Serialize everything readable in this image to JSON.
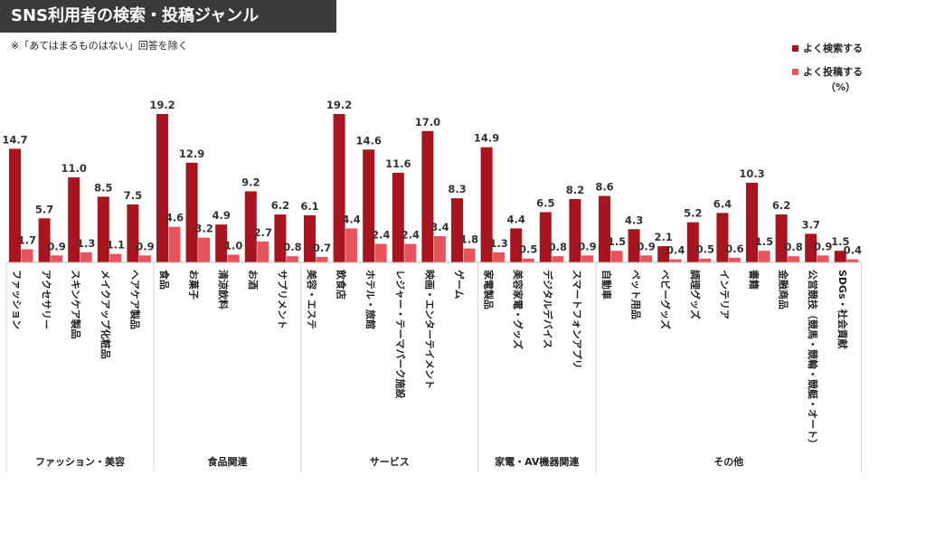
{
  "title": "SNS利用者の検索・投稿ジャンル",
  "note": "※「あてはまるものはない」回答を除く",
  "unit": "（%）",
  "colors": {
    "search": "#a8151f",
    "post": "#e8545c",
    "title_bg": "#3a3a3a"
  },
  "chart_data": {
    "type": "bar",
    "title": "SNS利用者の検索・投稿ジャンル",
    "ylabel": "",
    "ylim": [
      0,
      20
    ],
    "grid": false,
    "legend_position": "top-right",
    "series": [
      {
        "name": "よく検索する"
      },
      {
        "name": "よく投稿する"
      }
    ],
    "groups": [
      {
        "name": "ファッション・美容",
        "categories": [
          {
            "label": "ファッション",
            "values": [
              14.7,
              1.7
            ]
          },
          {
            "label": "アクセサリー",
            "values": [
              5.7,
              0.9
            ]
          },
          {
            "label": "スキンケア製品",
            "values": [
              11.0,
              1.3
            ]
          },
          {
            "label": "メイクアップ化粧品",
            "values": [
              8.5,
              1.1
            ]
          },
          {
            "label": "ヘアケア製品",
            "values": [
              7.5,
              0.9
            ]
          }
        ]
      },
      {
        "name": "食品関連",
        "categories": [
          {
            "label": "食品",
            "values": [
              19.2,
              4.6
            ]
          },
          {
            "label": "お菓子",
            "values": [
              12.9,
              3.2
            ]
          },
          {
            "label": "清涼飲料",
            "values": [
              4.9,
              1.0
            ]
          },
          {
            "label": "お酒",
            "values": [
              9.2,
              2.7
            ]
          },
          {
            "label": "サプリメント",
            "values": [
              6.2,
              0.8
            ]
          }
        ]
      },
      {
        "name": "サービス",
        "categories": [
          {
            "label": "美容・エステ",
            "values": [
              6.1,
              0.7
            ]
          },
          {
            "label": "飲食店",
            "values": [
              19.2,
              4.4
            ]
          },
          {
            "label": "ホテル・旅館",
            "values": [
              14.6,
              2.4
            ]
          },
          {
            "label": "レジャー・テーマパーク施設",
            "values": [
              11.6,
              2.4
            ]
          },
          {
            "label": "映画・エンターテイメント",
            "values": [
              17.0,
              3.4
            ]
          },
          {
            "label": "ゲーム",
            "values": [
              8.3,
              1.8
            ]
          }
        ]
      },
      {
        "name": "家電・AV機器関連",
        "categories": [
          {
            "label": "家電製品",
            "values": [
              14.9,
              1.3
            ]
          },
          {
            "label": "美容家電・グッズ",
            "values": [
              4.4,
              0.5
            ]
          },
          {
            "label": "デジタルデバイス",
            "values": [
              6.5,
              0.8
            ]
          },
          {
            "label": "スマートフォンアプリ",
            "values": [
              8.2,
              0.9
            ]
          }
        ]
      },
      {
        "name": "その他",
        "categories": [
          {
            "label": "自動車",
            "values": [
              8.6,
              1.5
            ]
          },
          {
            "label": "ペット用品",
            "values": [
              4.3,
              0.9
            ]
          },
          {
            "label": "ベビーグッズ",
            "values": [
              2.1,
              0.4
            ]
          },
          {
            "label": "調理グッズ",
            "values": [
              5.2,
              0.5
            ]
          },
          {
            "label": "インテリア",
            "values": [
              6.4,
              0.6
            ]
          },
          {
            "label": "書籍",
            "values": [
              10.3,
              1.5
            ]
          },
          {
            "label": "金融商品",
            "values": [
              6.2,
              0.8
            ]
          },
          {
            "label": "公営競技（競馬・競輪・競艇・オート）",
            "values": [
              3.7,
              0.9
            ]
          },
          {
            "label": "SDGs・社会貢献",
            "values": [
              1.5,
              0.4
            ]
          }
        ]
      }
    ]
  }
}
